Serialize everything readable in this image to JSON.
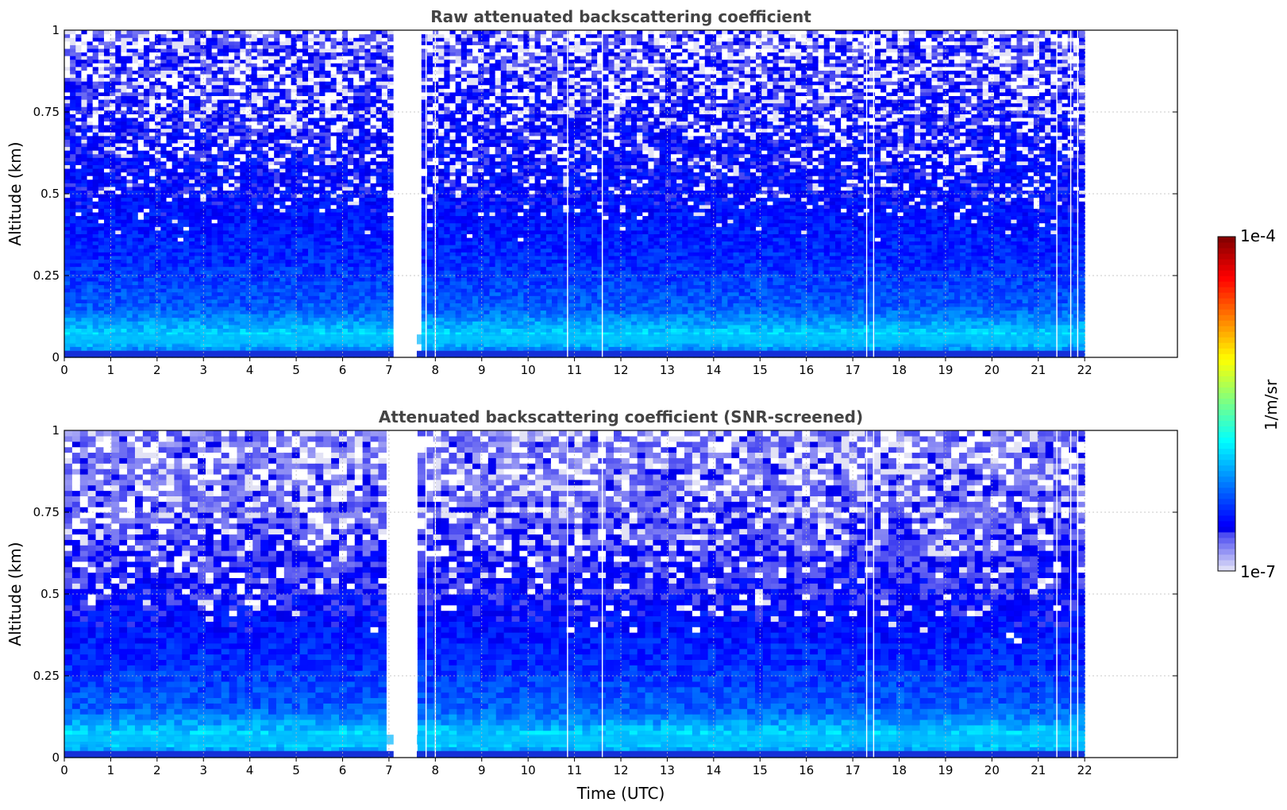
{
  "chart_data": [
    {
      "type": "heatmap",
      "title": "Raw attenuated backscattering coefficient",
      "xlabel": "",
      "ylabel": "Altitude (km)",
      "xlim": [
        0,
        24
      ],
      "ylim": [
        0,
        1
      ],
      "x_ticks": [
        "0",
        "1",
        "2",
        "3",
        "4",
        "5",
        "6",
        "7",
        "8",
        "9",
        "10",
        "11",
        "12",
        "13",
        "14",
        "15",
        "16",
        "17",
        "18",
        "19",
        "20",
        "21",
        "22"
      ],
      "y_ticks": [
        "0",
        "0.25",
        "0.5",
        "0.75",
        "1"
      ],
      "grid": true,
      "data_gap": [
        7.1,
        7.6
      ],
      "data_end": 22,
      "clear_lines": [
        7.8,
        8.0,
        10.85,
        11.6,
        17.3,
        17.45,
        21.4,
        21.7,
        21.85
      ],
      "profile_log10": [
        {
          "altitude": 0.02,
          "value": -6.2
        },
        {
          "altitude": 0.06,
          "value": -5.9
        },
        {
          "altitude": 0.15,
          "value": -6.3
        },
        {
          "altitude": 0.3,
          "value": -6.45
        },
        {
          "altitude": 0.5,
          "value": -6.55
        },
        {
          "altitude": 0.75,
          "value": -6.6
        },
        {
          "altitude": 1.0,
          "value": -6.65
        }
      ],
      "noise_fraction_top": 0.45
    },
    {
      "type": "heatmap",
      "title": "Attenuated backscattering coefficient (SNR-screened)",
      "xlabel": "Time (UTC)",
      "ylabel": "Altitude (km)",
      "xlim": [
        0,
        24
      ],
      "ylim": [
        0,
        1
      ],
      "x_ticks": [
        "0",
        "1",
        "2",
        "3",
        "4",
        "5",
        "6",
        "7",
        "8",
        "9",
        "10",
        "11",
        "12",
        "13",
        "14",
        "15",
        "16",
        "17",
        "18",
        "19",
        "20",
        "21",
        "22"
      ],
      "y_ticks": [
        "0",
        "0.25",
        "0.5",
        "0.75",
        "1"
      ],
      "grid": true,
      "data_gap": [
        7.1,
        7.6
      ],
      "data_end": 22,
      "clear_lines": [
        7.8,
        8.0,
        10.85,
        11.6,
        17.3,
        17.45,
        21.4,
        21.7,
        21.85
      ],
      "profile_log10": [
        {
          "altitude": 0.02,
          "value": -6.1
        },
        {
          "altitude": 0.06,
          "value": -5.9
        },
        {
          "altitude": 0.15,
          "value": -6.3
        },
        {
          "altitude": 0.3,
          "value": -6.45
        },
        {
          "altitude": 0.5,
          "value": -6.6
        },
        {
          "altitude": 0.75,
          "value": -6.7
        },
        {
          "altitude": 1.0,
          "value": -6.75
        }
      ],
      "noise_fraction_top": 0.4
    }
  ],
  "colorbar": {
    "label": "1/m/sr",
    "min_label": "1e-7",
    "max_label": "1e-4",
    "log10_range": [
      -7,
      -4
    ],
    "colormap": "jet"
  }
}
